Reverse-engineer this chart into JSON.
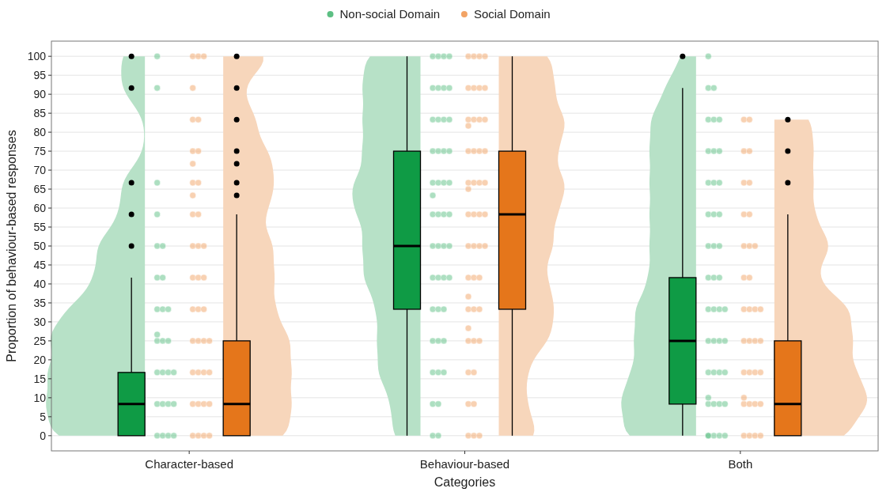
{
  "chart_data": {
    "type": "box",
    "xlabel": "Categories",
    "ylabel": "Proportion of behaviour-based responses",
    "categories": [
      "Character-based",
      "Behaviour-based",
      "Both"
    ],
    "ylim": [
      -4,
      104
    ],
    "yticks": [
      0,
      5,
      10,
      15,
      20,
      25,
      30,
      35,
      40,
      45,
      50,
      55,
      60,
      65,
      70,
      75,
      80,
      85,
      90,
      95,
      100
    ],
    "grid": "y",
    "legend": "top",
    "series": [
      {
        "color": "#0f9b45",
        "boxes": [
          {
            "low": 0,
            "q1": 0,
            "median": 8.33,
            "q3": 16.67,
            "high": 41.67,
            "outliers": [
              50,
              58.33,
              66.67,
              91.67,
              100
            ]
          },
          {
            "low": 0,
            "q1": 33.33,
            "median": 50,
            "q3": 75,
            "high": 100
          },
          {
            "low": 0,
            "q1": 8.33,
            "median": 25,
            "q3": 41.67,
            "high": 91.67,
            "outliers": [
              100
            ]
          }
        ]
      },
      {
        "color": "#e5761b",
        "boxes": [
          {
            "low": 0,
            "q1": 0,
            "median": 8.33,
            "q3": 25,
            "high": 58.33,
            "outliers": [
              63.33,
              66.67,
              71.67,
              75,
              83.33,
              91.67,
              100
            ]
          },
          {
            "low": 0,
            "q1": 33.33,
            "median": 58.33,
            "q3": 75,
            "high": 100
          },
          {
            "low": 0,
            "q1": 0,
            "median": 8.33,
            "q3": 25,
            "high": 58.33,
            "outliers": [
              66.67,
              75,
              83.33
            ]
          }
        ]
      },
      {
        "type": "scatter",
        "name": "Non-social Domain",
        "color": "#5cbf83",
        "marker": "circle",
        "x": [
          "Character-based",
          "Character-based",
          "Character-based",
          "Character-based",
          "Character-based",
          "Character-based",
          "Character-based",
          "Character-based",
          "Character-based",
          "Character-based",
          "Character-based",
          "Character-based",
          "Character-based",
          "Character-based",
          "Character-based",
          "Character-based",
          "Character-based",
          "Character-based",
          "Character-based",
          "Character-based",
          "Character-based",
          "Character-based",
          "Character-based",
          "Character-based",
          "Character-based",
          "Character-based",
          "Character-based",
          "Behaviour-based",
          "Behaviour-based",
          "Behaviour-based",
          "Behaviour-based",
          "Behaviour-based",
          "Behaviour-based",
          "Behaviour-based",
          "Behaviour-based",
          "Behaviour-based",
          "Behaviour-based",
          "Behaviour-based",
          "Behaviour-based",
          "Behaviour-based",
          "Behaviour-based",
          "Behaviour-based",
          "Behaviour-based",
          "Behaviour-based",
          "Behaviour-based",
          "Behaviour-based",
          "Behaviour-based",
          "Behaviour-based",
          "Behaviour-based",
          "Behaviour-based",
          "Behaviour-based",
          "Behaviour-based",
          "Behaviour-based",
          "Behaviour-based",
          "Behaviour-based",
          "Behaviour-based",
          "Behaviour-based",
          "Behaviour-based",
          "Behaviour-based",
          "Behaviour-based",
          "Behaviour-based",
          "Behaviour-based",
          "Behaviour-based",
          "Behaviour-based",
          "Behaviour-based",
          "Behaviour-based",
          "Behaviour-based",
          "Behaviour-based",
          "Behaviour-based",
          "Behaviour-based",
          "Behaviour-based",
          "Behaviour-based",
          "Behaviour-based",
          "Both",
          "Both",
          "Both",
          "Both",
          "Both",
          "Both",
          "Both",
          "Both",
          "Both",
          "Both",
          "Both",
          "Both",
          "Both",
          "Both",
          "Both",
          "Both",
          "Both",
          "Both",
          "Both",
          "Both",
          "Both",
          "Both",
          "Both",
          "Both",
          "Both",
          "Both",
          "Both",
          "Both",
          "Both",
          "Both",
          "Both",
          "Both",
          "Both",
          "Both",
          "Both",
          "Both",
          "Both",
          "Both",
          "Both",
          "Both",
          "Both",
          "Both",
          "Both"
        ],
        "values": [
          0,
          0,
          0,
          0,
          8.33,
          8.33,
          8.33,
          8.33,
          16.67,
          16.67,
          16.67,
          16.67,
          25,
          25,
          25,
          26.67,
          33.33,
          33.33,
          33.33,
          41.67,
          41.67,
          50,
          50,
          58.33,
          66.67,
          91.67,
          100,
          0,
          0,
          8.33,
          8.33,
          16.67,
          16.67,
          16.67,
          25,
          25,
          25,
          33.33,
          33.33,
          33.33,
          41.67,
          41.67,
          41.67,
          41.67,
          50,
          50,
          50,
          50,
          58.33,
          58.33,
          58.33,
          58.33,
          63.33,
          66.67,
          66.67,
          66.67,
          66.67,
          75,
          75,
          75,
          75,
          83.33,
          83.33,
          83.33,
          83.33,
          91.67,
          91.67,
          91.67,
          91.67,
          100,
          100,
          100,
          100,
          0,
          0,
          0,
          0,
          0,
          8.33,
          8.33,
          8.33,
          8.33,
          10,
          16.67,
          16.67,
          16.67,
          16.67,
          25,
          25,
          25,
          25,
          33.33,
          33.33,
          33.33,
          33.33,
          41.67,
          41.67,
          41.67,
          50,
          50,
          50,
          58.33,
          58.33,
          58.33,
          66.67,
          66.67,
          66.67,
          75,
          75,
          75,
          83.33,
          83.33,
          83.33,
          91.67,
          91.67,
          100
        ]
      },
      {
        "type": "scatter",
        "name": "Social Domain",
        "color": "#f2a365",
        "marker": "circle",
        "x": [
          "Character-based",
          "Character-based",
          "Character-based",
          "Character-based",
          "Character-based",
          "Character-based",
          "Character-based",
          "Character-based",
          "Character-based",
          "Character-based",
          "Character-based",
          "Character-based",
          "Character-based",
          "Character-based",
          "Character-based",
          "Character-based",
          "Character-based",
          "Character-based",
          "Character-based",
          "Character-based",
          "Character-based",
          "Character-based",
          "Character-based",
          "Character-based",
          "Character-based",
          "Character-based",
          "Character-based",
          "Character-based",
          "Character-based",
          "Character-based",
          "Character-based",
          "Character-based",
          "Character-based",
          "Character-based",
          "Character-based",
          "Character-based",
          "Character-based",
          "Character-based",
          "Character-based",
          "Behaviour-based",
          "Behaviour-based",
          "Behaviour-based",
          "Behaviour-based",
          "Behaviour-based",
          "Behaviour-based",
          "Behaviour-based",
          "Behaviour-based",
          "Behaviour-based",
          "Behaviour-based",
          "Behaviour-based",
          "Behaviour-based",
          "Behaviour-based",
          "Behaviour-based",
          "Behaviour-based",
          "Behaviour-based",
          "Behaviour-based",
          "Behaviour-based",
          "Behaviour-based",
          "Behaviour-based",
          "Behaviour-based",
          "Behaviour-based",
          "Behaviour-based",
          "Behaviour-based",
          "Behaviour-based",
          "Behaviour-based",
          "Behaviour-based",
          "Behaviour-based",
          "Behaviour-based",
          "Behaviour-based",
          "Behaviour-based",
          "Behaviour-based",
          "Behaviour-based",
          "Behaviour-based",
          "Behaviour-based",
          "Behaviour-based",
          "Behaviour-based",
          "Behaviour-based",
          "Behaviour-based",
          "Behaviour-based",
          "Behaviour-based",
          "Behaviour-based",
          "Behaviour-based",
          "Behaviour-based",
          "Behaviour-based",
          "Behaviour-based",
          "Behaviour-based",
          "Behaviour-based",
          "Both",
          "Both",
          "Both",
          "Both",
          "Both",
          "Both",
          "Both",
          "Both",
          "Both",
          "Both",
          "Both",
          "Both",
          "Both",
          "Both",
          "Both",
          "Both",
          "Both",
          "Both",
          "Both",
          "Both",
          "Both",
          "Both",
          "Both",
          "Both",
          "Both",
          "Both",
          "Both",
          "Both",
          "Both",
          "Both",
          "Both",
          "Both",
          "Both",
          "Both"
        ],
        "values": [
          0,
          0,
          0,
          0,
          8.33,
          8.33,
          8.33,
          8.33,
          16.67,
          16.67,
          16.67,
          16.67,
          25,
          25,
          25,
          25,
          33.33,
          33.33,
          33.33,
          41.67,
          41.67,
          41.67,
          50,
          50,
          50,
          58.33,
          58.33,
          63.33,
          66.67,
          66.67,
          71.67,
          75,
          75,
          83.33,
          83.33,
          91.67,
          100,
          100,
          100,
          0,
          0,
          0,
          8.33,
          8.33,
          16.67,
          16.67,
          25,
          25,
          25,
          28.33,
          33.33,
          33.33,
          33.33,
          36.67,
          41.67,
          41.67,
          41.67,
          50,
          50,
          50,
          50,
          58.33,
          58.33,
          58.33,
          58.33,
          65,
          66.67,
          66.67,
          66.67,
          66.67,
          75,
          75,
          75,
          75,
          81.67,
          83.33,
          83.33,
          83.33,
          83.33,
          91.67,
          91.67,
          91.67,
          91.67,
          100,
          100,
          100,
          100,
          0,
          0,
          0,
          0,
          8.33,
          8.33,
          8.33,
          8.33,
          10,
          16.67,
          16.67,
          16.67,
          16.67,
          25,
          25,
          25,
          25,
          33.33,
          33.33,
          33.33,
          33.33,
          41.67,
          41.67,
          50,
          50,
          50,
          58.33,
          58.33,
          66.67,
          66.67,
          75,
          75,
          83.33,
          83.33
        ]
      }
    ]
  }
}
